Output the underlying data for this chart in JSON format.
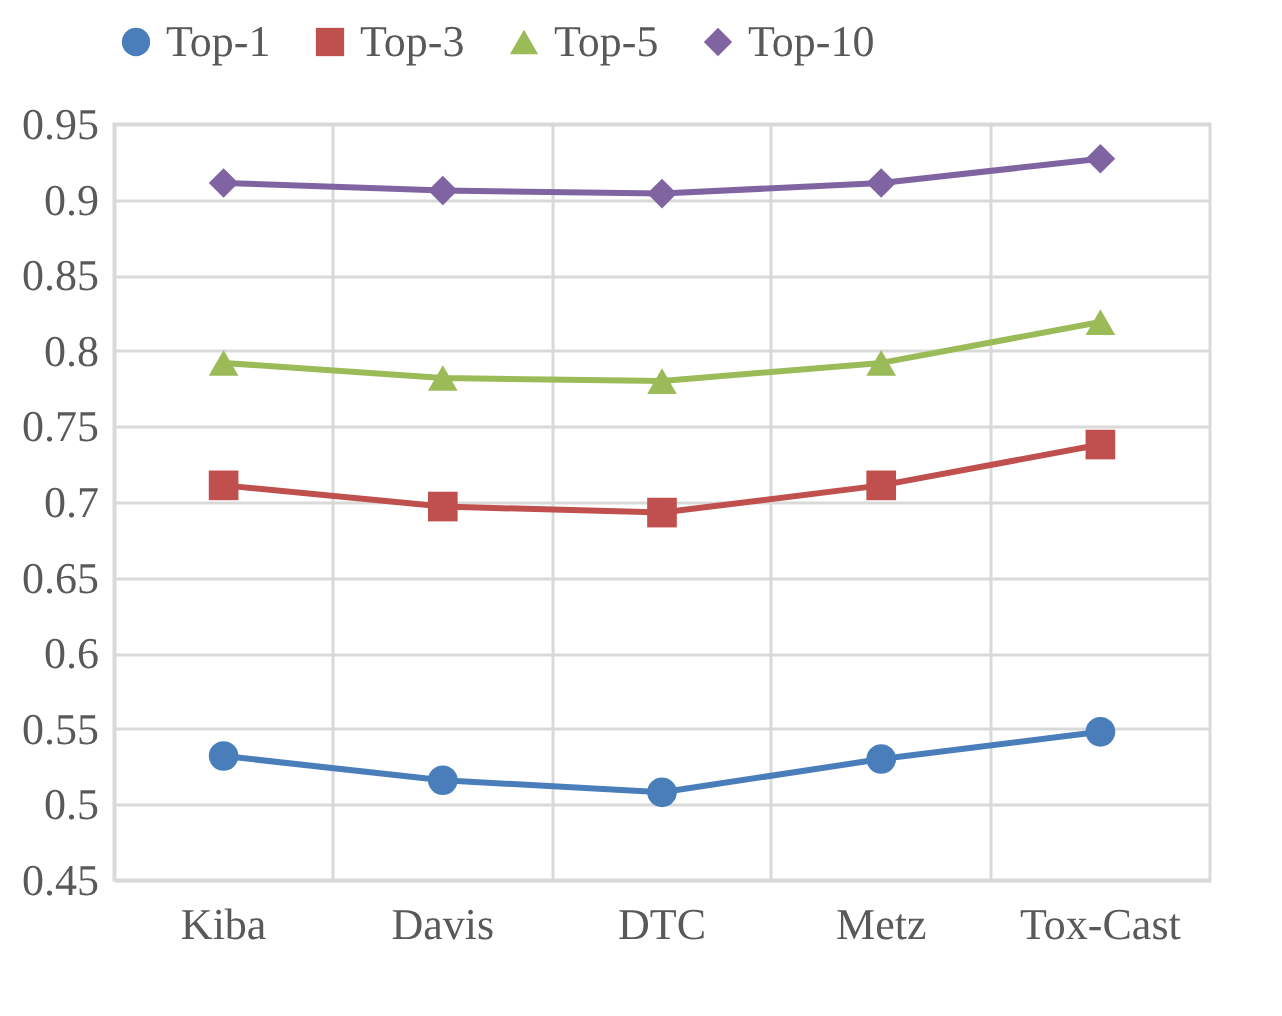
{
  "chart_data": {
    "type": "line",
    "categories": [
      "Kiba",
      "Davis",
      "DTC",
      "Metz",
      "Tox-Cast"
    ],
    "series": [
      {
        "name": "Top-1",
        "color": "#4a7ebb",
        "marker": "circle",
        "values": [
          0.532,
          0.516,
          0.508,
          0.53,
          0.548
        ]
      },
      {
        "name": "Top-3",
        "color": "#c0504d",
        "marker": "square",
        "values": [
          0.711,
          0.697,
          0.693,
          0.711,
          0.738
        ]
      },
      {
        "name": "Top-5",
        "color": "#9bbb59",
        "marker": "triangle",
        "values": [
          0.792,
          0.782,
          0.78,
          0.792,
          0.819
        ]
      },
      {
        "name": "Top-10",
        "color": "#8064a2",
        "marker": "diamond",
        "values": [
          0.911,
          0.906,
          0.904,
          0.911,
          0.927
        ]
      }
    ],
    "ylim": [
      0.45,
      0.95
    ],
    "yticks": [
      0.45,
      0.5,
      0.55,
      0.6,
      0.65,
      0.7,
      0.75,
      0.8,
      0.85,
      0.9,
      0.95
    ],
    "grid": true,
    "legend": "top",
    "line_style": "solid"
  }
}
